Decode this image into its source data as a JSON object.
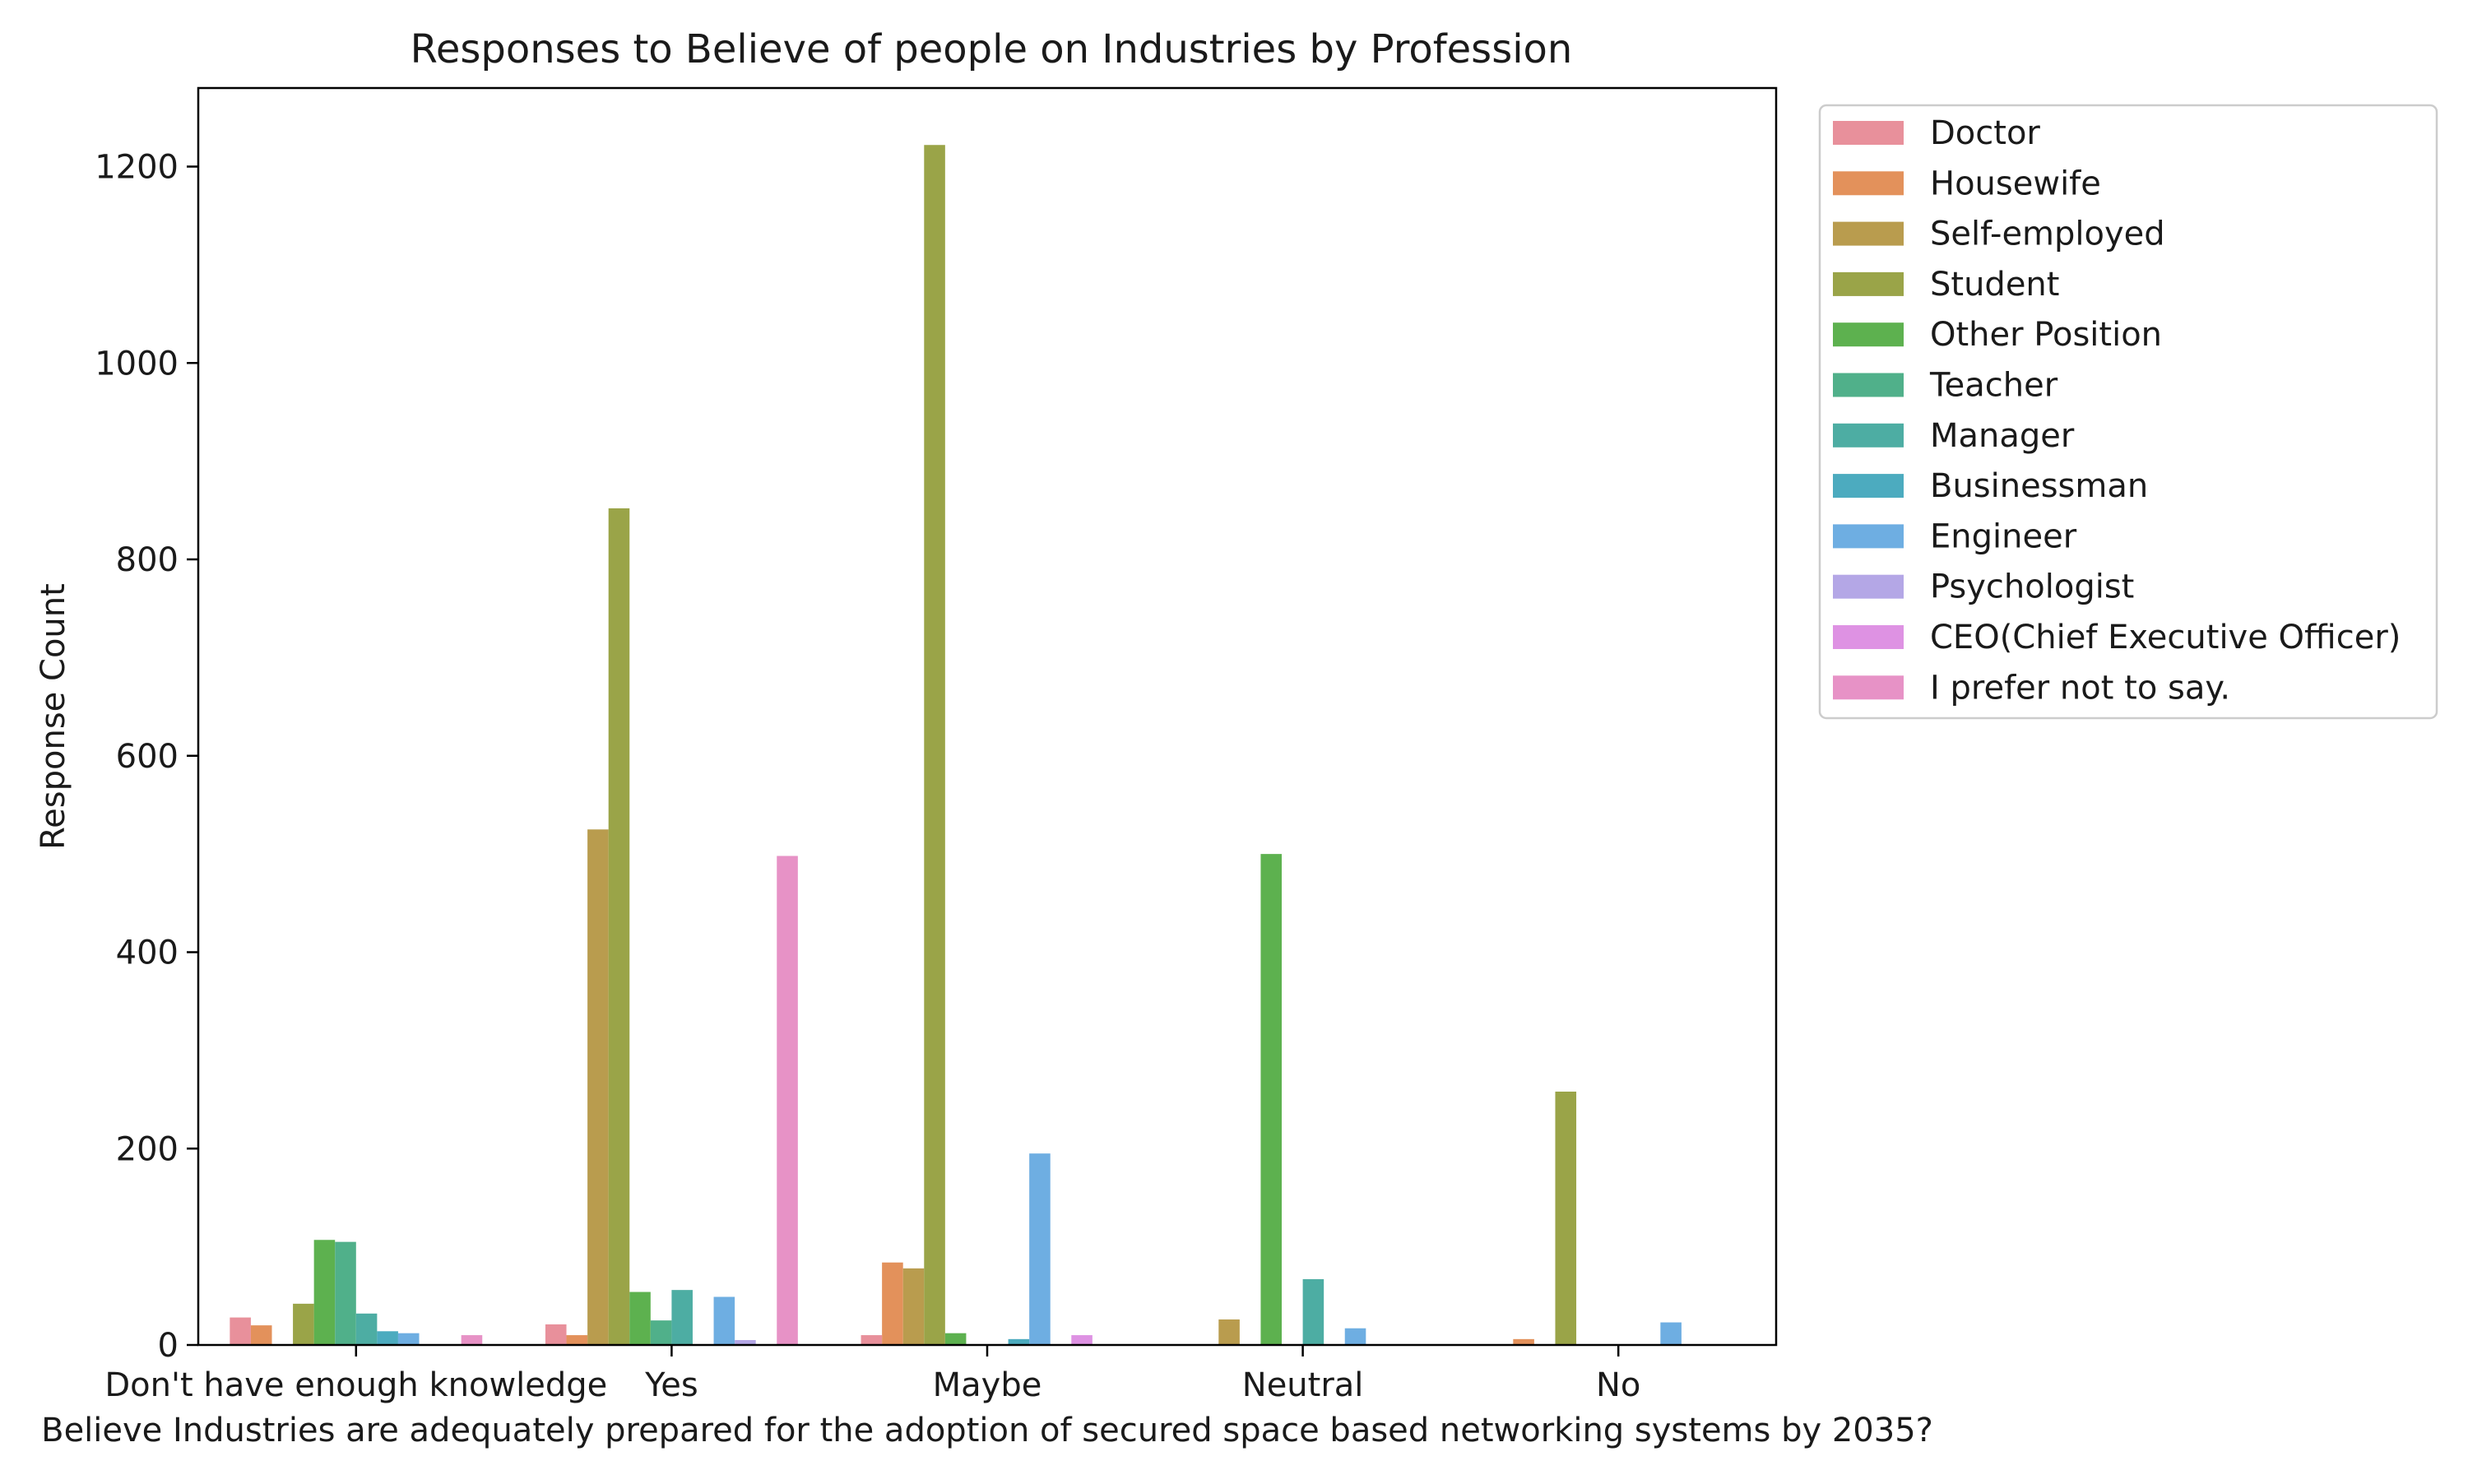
{
  "chart_data": {
    "type": "bar",
    "title": "Responses to Believe of people on Industries by Profession",
    "xlabel": "Believe Industries are adequately prepared for the adoption of secured space based networking systems by 2035?",
    "ylabel": "Response Count",
    "ylim": [
      0,
      1280
    ],
    "yticks": [
      0,
      200,
      400,
      600,
      800,
      1000,
      1200
    ],
    "grid": false,
    "legend_position": "outside right, top",
    "categories": [
      "Don't have enough knowledge",
      "Yes",
      "Maybe",
      "Neutral",
      "No"
    ],
    "series": [
      {
        "name": "Doctor",
        "color": "#e8909b",
        "values": [
          28,
          21,
          10,
          0,
          0
        ]
      },
      {
        "name": "Housewife",
        "color": "#e3915b",
        "values": [
          20,
          10,
          84,
          0,
          6
        ]
      },
      {
        "name": "Self-employed",
        "color": "#b99c4e",
        "values": [
          0,
          525,
          78,
          26,
          0
        ]
      },
      {
        "name": "Student",
        "color": "#9aa448",
        "values": [
          42,
          852,
          1222,
          0,
          258
        ]
      },
      {
        "name": "Other Position",
        "color": "#5db14f",
        "values": [
          107,
          54,
          12,
          500,
          0
        ]
      },
      {
        "name": "Teacher",
        "color": "#50b08a",
        "values": [
          105,
          25,
          0,
          0,
          0
        ]
      },
      {
        "name": "Manager",
        "color": "#4dada3",
        "values": [
          32,
          56,
          0,
          67,
          0
        ]
      },
      {
        "name": "Businessman",
        "color": "#4cabbf",
        "values": [
          14,
          0,
          6,
          0,
          0
        ]
      },
      {
        "name": "Engineer",
        "color": "#6eaee2",
        "values": [
          12,
          49,
          195,
          17,
          23
        ]
      },
      {
        "name": "Psychologist",
        "color": "#b4a7e6",
        "values": [
          0,
          5,
          0,
          0,
          0
        ]
      },
      {
        "name": "CEO(Chief Executive Officer)",
        "color": "#de92e3",
        "values": [
          0,
          0,
          10,
          0,
          0
        ]
      },
      {
        "name": "I prefer not to say.",
        "color": "#e792c6",
        "values": [
          10,
          498,
          0,
          0,
          0
        ]
      }
    ]
  }
}
